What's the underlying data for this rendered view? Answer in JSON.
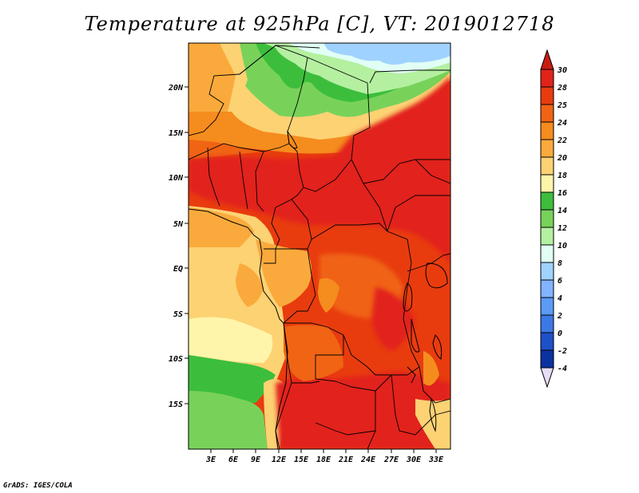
{
  "title": "Temperature at 925hPa [C], VT: 2019012718",
  "credit": "GrADS: IGES/COLA",
  "lat_labels": [
    "20N",
    "15N",
    "10N",
    "5N",
    "EQ",
    "5S",
    "10S",
    "15S"
  ],
  "lon_labels": [
    "3E",
    "6E",
    "9E",
    "12E",
    "15E",
    "18E",
    "21E",
    "24E",
    "27E",
    "30E",
    "33E"
  ],
  "colorbar": {
    "labels": [
      "30",
      "28",
      "25",
      "24",
      "22",
      "20",
      "18",
      "16",
      "14",
      "12",
      "10",
      "8",
      "6",
      "4",
      "2",
      "0",
      "-2",
      "-4"
    ],
    "colors": [
      "#e2231a",
      "#e83c0f",
      "#f06414",
      "#f58c1e",
      "#faaa3c",
      "#fdd273",
      "#fff5aa",
      "#3cbe3c",
      "#78d25a",
      "#b4f0a0",
      "#e1fff5",
      "#a0d2ff",
      "#82b4ff",
      "#5a9bf5",
      "#3c78e6",
      "#1e50c8",
      "#0a32a0",
      "#00146e"
    ],
    "top_arrow_color": "#c81e12",
    "bottom_arrow_color": "#e6dcf5"
  }
}
